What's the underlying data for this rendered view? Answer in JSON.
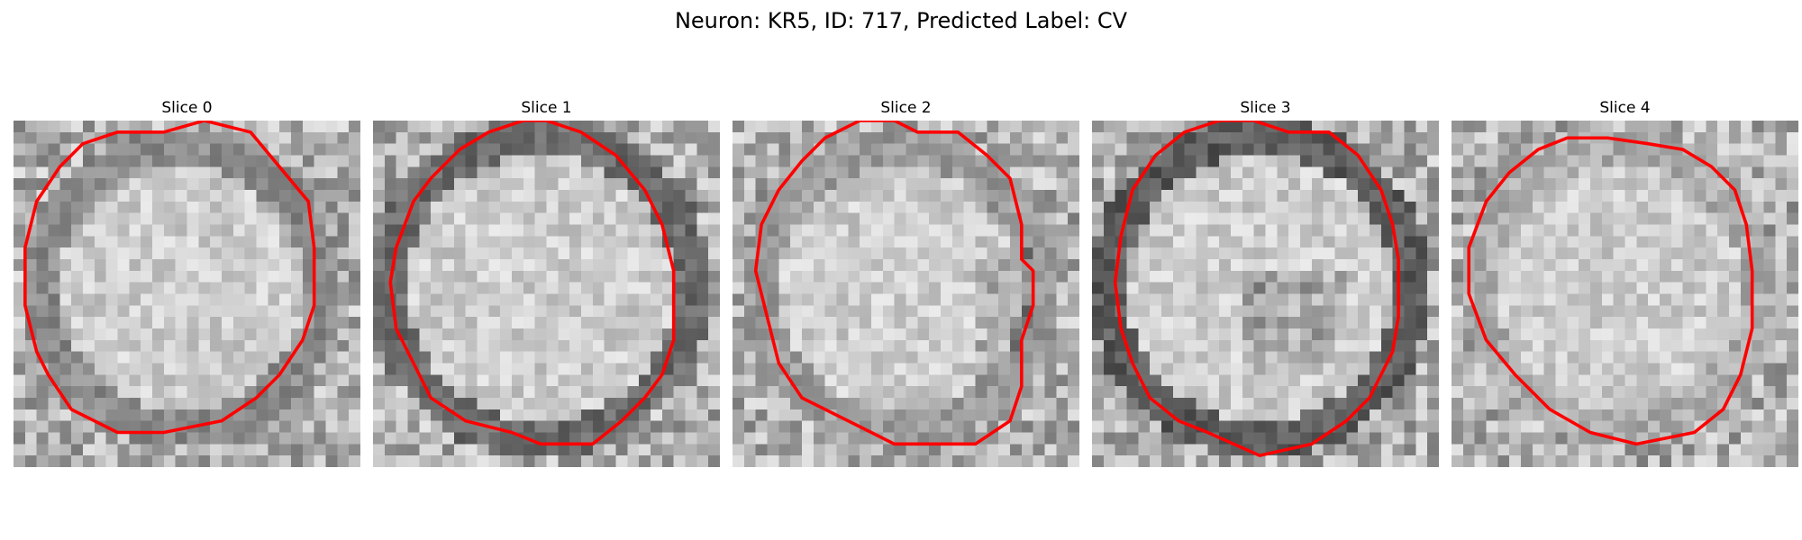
{
  "title": "Neuron: KR5, ID: 717, Predicted Label: CV",
  "slices": [
    {
      "label": "Slice 0",
      "contour": [
        [
          16.5,
          0
        ],
        [
          20.5,
          1
        ],
        [
          23,
          4
        ],
        [
          25.5,
          7
        ],
        [
          26,
          11
        ],
        [
          26,
          16
        ],
        [
          25,
          19
        ],
        [
          23,
          22
        ],
        [
          21,
          24
        ],
        [
          18,
          26
        ],
        [
          13,
          27
        ],
        [
          9,
          27
        ],
        [
          5,
          25
        ],
        [
          3,
          22
        ],
        [
          2,
          20
        ],
        [
          1,
          16
        ],
        [
          1,
          11
        ],
        [
          2,
          7
        ],
        [
          4,
          4
        ],
        [
          6,
          2
        ],
        [
          9,
          1
        ],
        [
          13,
          1
        ]
      ]
    },
    {
      "label": "Slice 1",
      "contour": [
        [
          15,
          0
        ],
        [
          18,
          1
        ],
        [
          21,
          3
        ],
        [
          23.5,
          6
        ],
        [
          25,
          9
        ],
        [
          26,
          13
        ],
        [
          26,
          19
        ],
        [
          25,
          22
        ],
        [
          23.5,
          24
        ],
        [
          21.5,
          26
        ],
        [
          19,
          28
        ],
        [
          14.5,
          28
        ],
        [
          12,
          27
        ],
        [
          8,
          26
        ],
        [
          5,
          24
        ],
        [
          3.5,
          21
        ],
        [
          2,
          18
        ],
        [
          1.5,
          14
        ],
        [
          2,
          11
        ],
        [
          3.5,
          7
        ],
        [
          5,
          5
        ],
        [
          7.5,
          2.5
        ],
        [
          10,
          1
        ],
        [
          13,
          0
        ]
      ]
    },
    {
      "label": "Slice 2",
      "contour": [
        [
          16,
          1
        ],
        [
          19.5,
          1
        ],
        [
          22,
          3
        ],
        [
          24,
          5
        ],
        [
          25,
          9
        ],
        [
          25,
          12
        ],
        [
          26,
          13
        ],
        [
          26,
          16
        ],
        [
          25,
          19
        ],
        [
          25,
          23
        ],
        [
          24,
          26
        ],
        [
          21,
          28
        ],
        [
          14,
          28
        ],
        [
          10,
          26
        ],
        [
          6,
          24
        ],
        [
          4,
          21
        ],
        [
          3,
          17
        ],
        [
          2,
          13
        ],
        [
          2.5,
          9
        ],
        [
          4,
          6
        ],
        [
          6,
          3.5
        ],
        [
          8,
          1.5
        ],
        [
          11,
          0
        ],
        [
          14,
          0
        ]
      ]
    },
    {
      "label": "Slice 3",
      "contour": [
        [
          17,
          1
        ],
        [
          20.5,
          1
        ],
        [
          23,
          3
        ],
        [
          25,
          6
        ],
        [
          26,
          9
        ],
        [
          26.5,
          12
        ],
        [
          26.5,
          17
        ],
        [
          26,
          20
        ],
        [
          24,
          24
        ],
        [
          22,
          26
        ],
        [
          19,
          28
        ],
        [
          14.5,
          29
        ],
        [
          10,
          27
        ],
        [
          7.5,
          26
        ],
        [
          5,
          24
        ],
        [
          3.5,
          21
        ],
        [
          2.5,
          18
        ],
        [
          2,
          14
        ],
        [
          2.5,
          10
        ],
        [
          3.5,
          6
        ],
        [
          5.5,
          3
        ],
        [
          8,
          1
        ],
        [
          11,
          0
        ],
        [
          14,
          0
        ]
      ]
    },
    {
      "label": "Slice 4",
      "contour": [
        [
          17,
          2
        ],
        [
          20,
          2.5
        ],
        [
          22.5,
          4
        ],
        [
          24.5,
          6
        ],
        [
          25.5,
          9
        ],
        [
          26,
          13
        ],
        [
          26,
          18
        ],
        [
          25,
          22
        ],
        [
          23.5,
          25
        ],
        [
          21,
          27
        ],
        [
          16,
          28
        ],
        [
          12,
          27
        ],
        [
          8.5,
          25
        ],
        [
          5.5,
          22
        ],
        [
          3,
          19
        ],
        [
          1.5,
          15
        ],
        [
          1.5,
          11
        ],
        [
          3,
          7
        ],
        [
          5,
          4.5
        ],
        [
          7.5,
          2.5
        ],
        [
          10,
          1.5
        ],
        [
          13.5,
          1.5
        ]
      ]
    }
  ]
}
